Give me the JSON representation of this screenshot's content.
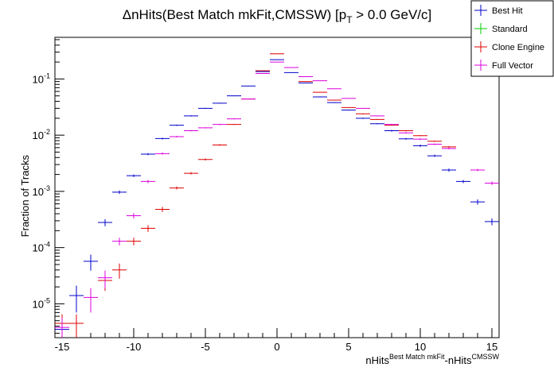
{
  "chart_data": {
    "type": "scatter",
    "title_prefix": "ΔnHits(Best Match mkFit,CMSSW) [p",
    "title_sub": "T",
    "title_suffix": " > 0.0 GeV/c]",
    "xlabel": {
      "base1": "nHits",
      "sup1": "Best Match mkFit",
      "base2": "-nHits",
      "sup2": "CMSSW"
    },
    "ylabel": "Fraction of Tracks",
    "xlim": [
      -15.5,
      15.5
    ],
    "ylim": [
      2.5e-06,
      0.55
    ],
    "yscale": "log",
    "grid": false,
    "legend_position": "top-right",
    "x_ticks": [
      {
        "value": -15,
        "label": "-15"
      },
      {
        "value": -10,
        "label": "-10"
      },
      {
        "value": -5,
        "label": "-5"
      },
      {
        "value": 0,
        "label": "0"
      },
      {
        "value": 5,
        "label": "5"
      },
      {
        "value": 10,
        "label": "10"
      },
      {
        "value": 15,
        "label": "15"
      }
    ],
    "y_ticks": [
      {
        "value": 1e-05,
        "base": "10",
        "exp": "-5"
      },
      {
        "value": 0.0001,
        "base": "10",
        "exp": "-4"
      },
      {
        "value": 0.001,
        "base": "10",
        "exp": "-3"
      },
      {
        "value": 0.01,
        "base": "10",
        "exp": "-2"
      },
      {
        "value": 0.1,
        "base": "10",
        "exp": "-1"
      }
    ],
    "series": [
      {
        "name": "Best Hit",
        "color": "#0000cc",
        "points": [
          {
            "x": -15,
            "y": 3.5e-06,
            "err": 1.8e-06
          },
          {
            "x": -14,
            "y": 1.4e-05,
            "err": 7e-06
          },
          {
            "x": -13,
            "y": 5.7e-05,
            "err": 1.8e-05
          },
          {
            "x": -12,
            "y": 0.00028,
            "err": 4e-05
          },
          {
            "x": -11,
            "y": 0.00097,
            "err": 7e-05
          },
          {
            "x": -10,
            "y": 0.0019,
            "err": 0.0001
          },
          {
            "x": -9,
            "y": 0.0046,
            "err": 0.0002
          },
          {
            "x": -8,
            "y": 0.0087,
            "err": 0.0003
          },
          {
            "x": -7,
            "y": 0.015,
            "err": 0.0004
          },
          {
            "x": -6,
            "y": 0.022,
            "err": 0.0005
          },
          {
            "x": -5,
            "y": 0.03,
            "err": 0.0006
          },
          {
            "x": -4,
            "y": 0.037,
            "err": 0.0007
          },
          {
            "x": -3,
            "y": 0.05,
            "err": 0.0008
          },
          {
            "x": -2,
            "y": 0.075,
            "err": 0.001
          },
          {
            "x": -1,
            "y": 0.135,
            "err": 0.0013
          },
          {
            "x": 0,
            "y": 0.22,
            "err": 0.0017
          },
          {
            "x": 1,
            "y": 0.13,
            "err": 0.0013
          },
          {
            "x": 2,
            "y": 0.085,
            "err": 0.001
          },
          {
            "x": 3,
            "y": 0.048,
            "err": 0.0008
          },
          {
            "x": 4,
            "y": 0.038,
            "err": 0.0007
          },
          {
            "x": 5,
            "y": 0.028,
            "err": 0.0006
          },
          {
            "x": 6,
            "y": 0.02,
            "err": 0.0005
          },
          {
            "x": 7,
            "y": 0.016,
            "err": 0.0004
          },
          {
            "x": 8,
            "y": 0.012,
            "err": 0.0004
          },
          {
            "x": 9,
            "y": 0.0086,
            "err": 0.0003
          },
          {
            "x": 10,
            "y": 0.0065,
            "err": 0.0003
          },
          {
            "x": 11,
            "y": 0.0043,
            "err": 0.0002
          },
          {
            "x": 12,
            "y": 0.0024,
            "err": 0.00015
          },
          {
            "x": 13,
            "y": 0.0015,
            "err": 0.0001
          },
          {
            "x": 14,
            "y": 0.00065,
            "err": 7e-05
          },
          {
            "x": 15,
            "y": 0.00029,
            "err": 4e-05
          }
        ]
      },
      {
        "name": "Standard",
        "color": "#00cc00",
        "points": []
      },
      {
        "name": "Clone Engine",
        "color": "#dd0000",
        "points": [
          {
            "x": -15,
            "y": 4.5e-06,
            "err": 2e-06
          },
          {
            "x": -14,
            "y": 4.5e-06,
            "err": 2e-06
          },
          {
            "x": -12,
            "y": 2.6e-05,
            "err": 9e-06
          },
          {
            "x": -11,
            "y": 4e-05,
            "err": 1.2e-05
          },
          {
            "x": -10,
            "y": 0.00013,
            "err": 2e-05
          },
          {
            "x": -9,
            "y": 0.00022,
            "err": 3e-05
          },
          {
            "x": -8,
            "y": 0.00048,
            "err": 5e-05
          },
          {
            "x": -7,
            "y": 0.00115,
            "err": 7e-05
          },
          {
            "x": -6,
            "y": 0.0021,
            "err": 0.0001
          },
          {
            "x": -5,
            "y": 0.0037,
            "err": 0.00015
          },
          {
            "x": -4,
            "y": 0.0067,
            "err": 0.0002
          },
          {
            "x": -3,
            "y": 0.0155,
            "err": 0.0003
          },
          {
            "x": -2,
            "y": 0.044,
            "err": 0.0005
          },
          {
            "x": -1,
            "y": 0.14,
            "err": 0.001
          },
          {
            "x": 0,
            "y": 0.28,
            "err": 0.0014
          },
          {
            "x": 1,
            "y": 0.16,
            "err": 0.001
          },
          {
            "x": 2,
            "y": 0.09,
            "err": 0.0008
          },
          {
            "x": 3,
            "y": 0.058,
            "err": 0.0006
          },
          {
            "x": 4,
            "y": 0.042,
            "err": 0.0005
          },
          {
            "x": 5,
            "y": 0.031,
            "err": 0.0004
          },
          {
            "x": 6,
            "y": 0.024,
            "err": 0.0004
          },
          {
            "x": 7,
            "y": 0.019,
            "err": 0.0003
          },
          {
            "x": 8,
            "y": 0.015,
            "err": 0.0003
          },
          {
            "x": 9,
            "y": 0.012,
            "err": 0.0003
          },
          {
            "x": 10,
            "y": 0.0098,
            "err": 0.0002
          },
          {
            "x": 11,
            "y": 0.0078,
            "err": 0.0002
          },
          {
            "x": 12,
            "y": 0.0062,
            "err": 0.0002
          },
          {
            "x": 14,
            "y": 0.0024,
            "err": 0.0001
          }
        ]
      },
      {
        "name": "Full Vector",
        "color": "#dd00dd",
        "points": [
          {
            "x": -15,
            "y": 3.8e-06,
            "err": 1.8e-06
          },
          {
            "x": -13,
            "y": 1.3e-05,
            "err": 6e-06
          },
          {
            "x": -12,
            "y": 2.9e-05,
            "err": 1e-05
          },
          {
            "x": -11,
            "y": 0.00013,
            "err": 2e-05
          },
          {
            "x": -10,
            "y": 0.00037,
            "err": 4e-05
          },
          {
            "x": -9,
            "y": 0.0015,
            "err": 0.0001
          },
          {
            "x": -8,
            "y": 0.0047,
            "err": 0.0002
          },
          {
            "x": -7,
            "y": 0.0094,
            "err": 0.0003
          },
          {
            "x": -6,
            "y": 0.012,
            "err": 0.0003
          },
          {
            "x": -5,
            "y": 0.0135,
            "err": 0.0003
          },
          {
            "x": -4,
            "y": 0.0155,
            "err": 0.0004
          },
          {
            "x": -3,
            "y": 0.0195,
            "err": 0.0004
          },
          {
            "x": -2,
            "y": 0.044,
            "err": 0.0006
          },
          {
            "x": -1,
            "y": 0.125,
            "err": 0.001
          },
          {
            "x": 0,
            "y": 0.2,
            "err": 0.0013
          },
          {
            "x": 1,
            "y": 0.16,
            "err": 0.0012
          },
          {
            "x": 2,
            "y": 0.11,
            "err": 0.001
          },
          {
            "x": 3,
            "y": 0.093,
            "err": 0.0009
          },
          {
            "x": 4,
            "y": 0.067,
            "err": 0.0008
          },
          {
            "x": 5,
            "y": 0.045,
            "err": 0.0006
          },
          {
            "x": 6,
            "y": 0.03,
            "err": 0.0005
          },
          {
            "x": 7,
            "y": 0.022,
            "err": 0.0004
          },
          {
            "x": 8,
            "y": 0.0155,
            "err": 0.0004
          },
          {
            "x": 9,
            "y": 0.011,
            "err": 0.0003
          },
          {
            "x": 10,
            "y": 0.0085,
            "err": 0.0003
          },
          {
            "x": 11,
            "y": 0.0069,
            "err": 0.0002
          },
          {
            "x": 12,
            "y": 0.0058,
            "err": 0.0002
          },
          {
            "x": 14,
            "y": 0.0024,
            "err": 0.0001
          },
          {
            "x": 15,
            "y": 0.0014,
            "err": 0.0001
          }
        ]
      }
    ]
  }
}
